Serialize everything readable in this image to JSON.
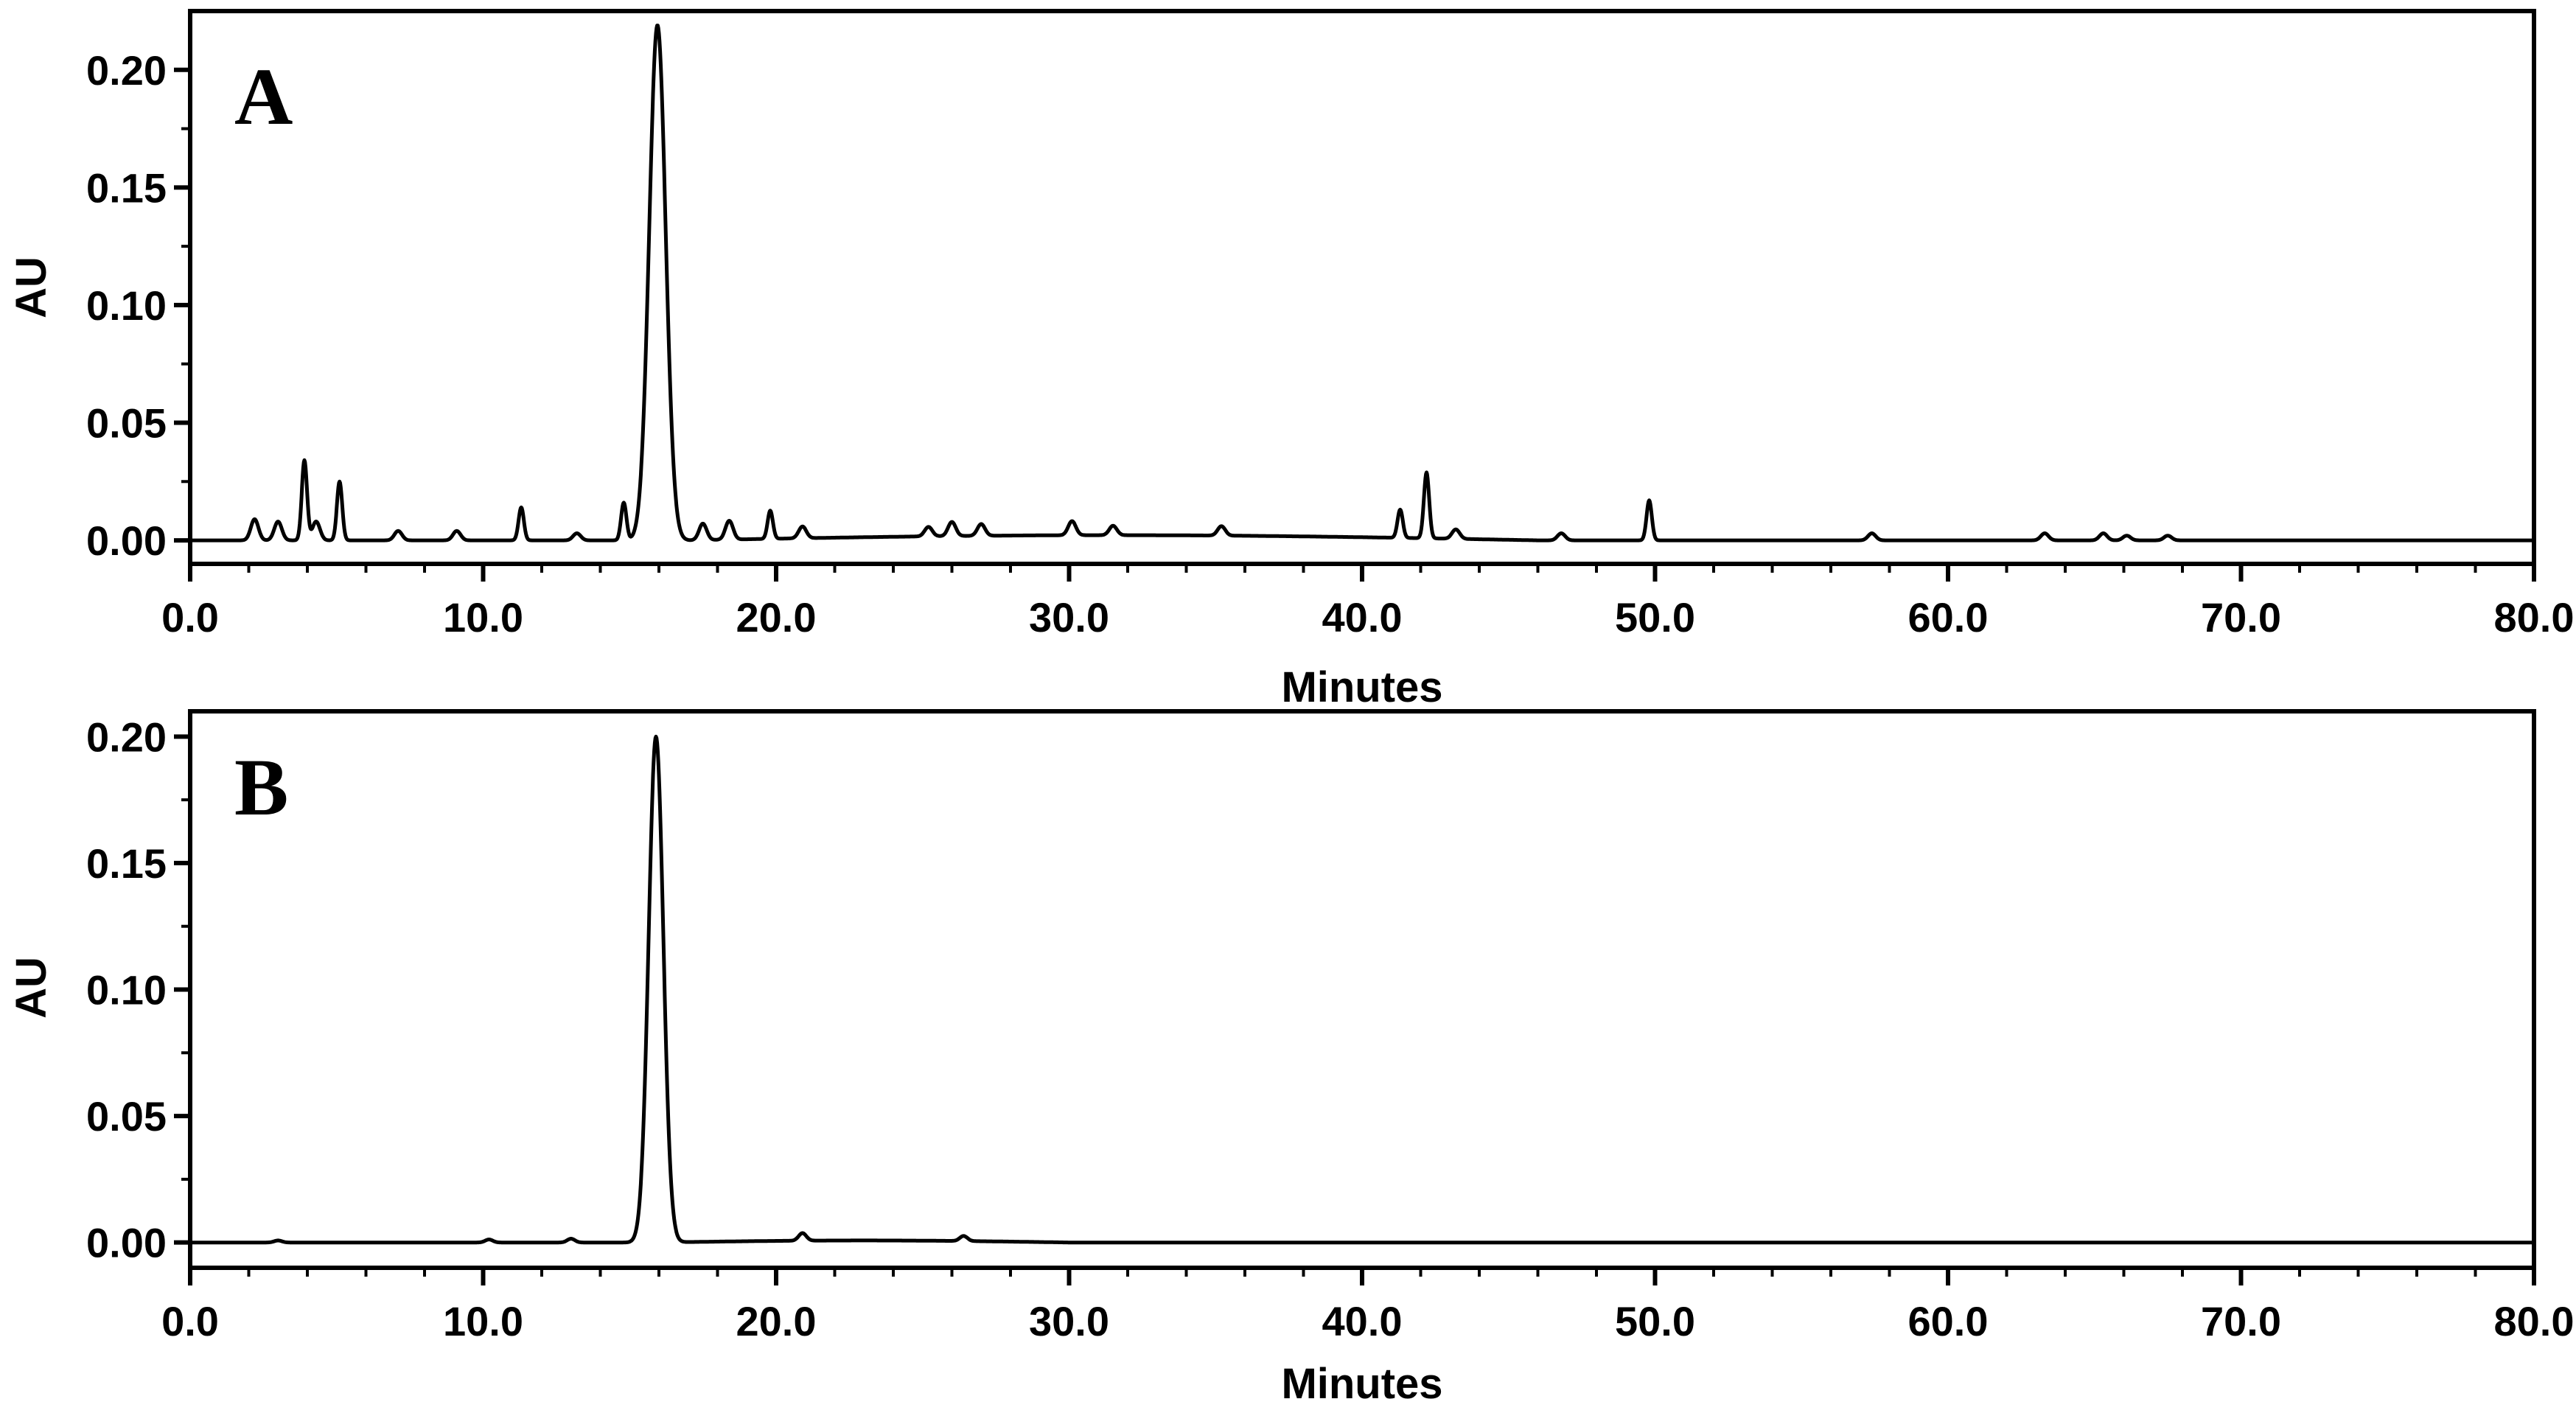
{
  "chart_data": [
    {
      "type": "line",
      "panel_label": "A",
      "xlabel": "Minutes",
      "ylabel": "AU",
      "xlim": [
        0,
        80
      ],
      "ylim": [
        -0.01,
        0.225
      ],
      "x_ticks": [
        "0.0",
        "10.0",
        "20.0",
        "30.0",
        "40.0",
        "50.0",
        "60.0",
        "70.0",
        "80.0"
      ],
      "y_ticks": [
        "0.00",
        "0.05",
        "0.10",
        "0.15",
        "0.20"
      ],
      "grid": false,
      "series": [
        {
          "peaks": [
            {
              "x": 2.2,
              "y": 0.009
            },
            {
              "x": 3.0,
              "y": 0.008
            },
            {
              "x": 3.9,
              "y": 0.034
            },
            {
              "x": 4.3,
              "y": 0.008
            },
            {
              "x": 5.1,
              "y": 0.025
            },
            {
              "x": 7.1,
              "y": 0.004
            },
            {
              "x": 9.1,
              "y": 0.004
            },
            {
              "x": 11.3,
              "y": 0.014
            },
            {
              "x": 13.2,
              "y": 0.003
            },
            {
              "x": 14.8,
              "y": 0.016
            },
            {
              "x": 15.95,
              "y": 0.219
            },
            {
              "x": 17.5,
              "y": 0.007
            },
            {
              "x": 18.4,
              "y": 0.008
            },
            {
              "x": 19.8,
              "y": 0.012
            },
            {
              "x": 20.9,
              "y": 0.005
            },
            {
              "x": 25.2,
              "y": 0.004
            },
            {
              "x": 26.0,
              "y": 0.006
            },
            {
              "x": 27.0,
              "y": 0.005
            },
            {
              "x": 30.1,
              "y": 0.006
            },
            {
              "x": 31.5,
              "y": 0.004
            },
            {
              "x": 35.2,
              "y": 0.004
            },
            {
              "x": 41.3,
              "y": 0.012
            },
            {
              "x": 42.2,
              "y": 0.028
            },
            {
              "x": 43.2,
              "y": 0.004
            },
            {
              "x": 46.8,
              "y": 0.003
            },
            {
              "x": 49.8,
              "y": 0.017
            },
            {
              "x": 57.4,
              "y": 0.003
            },
            {
              "x": 63.3,
              "y": 0.003
            },
            {
              "x": 65.3,
              "y": 0.003
            },
            {
              "x": 66.1,
              "y": 0.002
            },
            {
              "x": 67.5,
              "y": 0.002
            }
          ],
          "color": "#000000"
        }
      ]
    },
    {
      "type": "line",
      "panel_label": "B",
      "xlabel": "Minutes",
      "ylabel": "AU",
      "xlim": [
        0,
        80
      ],
      "ylim": [
        -0.01,
        0.21
      ],
      "x_ticks": [
        "0.0",
        "10.0",
        "20.0",
        "30.0",
        "40.0",
        "50.0",
        "60.0",
        "70.0",
        "80.0"
      ],
      "y_ticks": [
        "0.00",
        "0.05",
        "0.10",
        "0.15",
        "0.20"
      ],
      "grid": false,
      "series": [
        {
          "peaks": [
            {
              "x": 3.0,
              "y": 0.0008
            },
            {
              "x": 10.2,
              "y": 0.0012
            },
            {
              "x": 13.0,
              "y": 0.0015
            },
            {
              "x": 15.9,
              "y": 0.2
            },
            {
              "x": 20.9,
              "y": 0.003
            },
            {
              "x": 26.4,
              "y": 0.002
            }
          ],
          "color": "#000000"
        }
      ]
    }
  ]
}
